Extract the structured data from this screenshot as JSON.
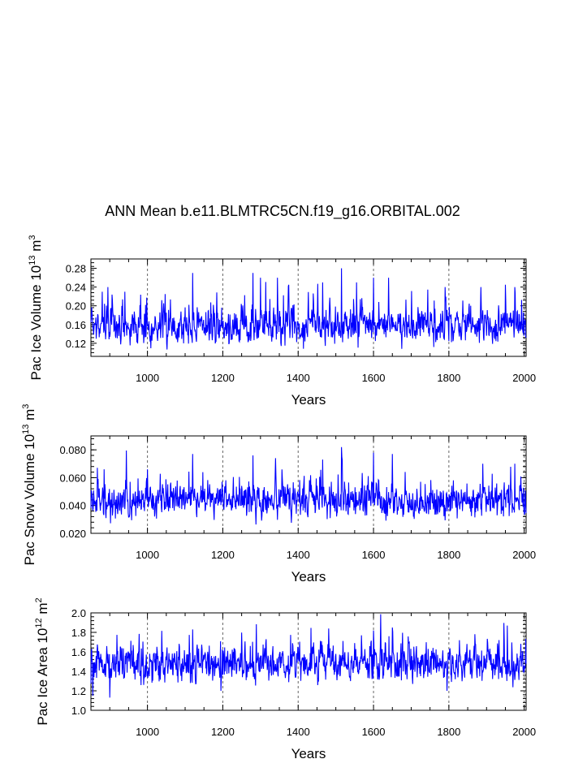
{
  "title": "ANN Mean b.e11.BLMTRC5CN.f19_g16.ORBITAL.002",
  "line_color": "#0000ff",
  "chart_data": [
    {
      "type": "line",
      "ylabel": "Pac Ice Volume 10",
      "ylabel_exp": "13",
      "ylabel_unit": " m",
      "ylabel_unit_exp": "3",
      "xlabel": "Years",
      "xlim": [
        850,
        2005
      ],
      "ylim": [
        0.092,
        0.3
      ],
      "xticks": [
        1000,
        1200,
        1400,
        1600,
        1800,
        2000
      ],
      "xtick_labels": [
        "1000",
        "1200",
        "1400",
        "1600",
        "1800",
        "2000"
      ],
      "yticks": [
        0.12,
        0.16,
        0.2,
        0.24,
        0.28
      ],
      "ytick_labels": [
        "0.12",
        "0.16",
        "0.20",
        "0.24",
        "0.28"
      ],
      "grid_x": [
        1000,
        1200,
        1400,
        1600,
        1800,
        2000
      ],
      "series": {
        "name": "Pac Ice Volume",
        "start_year": 850,
        "base": 0.155,
        "amp": 0.022,
        "seed": 7,
        "spikes": [
          [
            880,
            0.23
          ],
          [
            895,
            0.24
          ],
          [
            940,
            0.23
          ],
          [
            1120,
            0.27
          ],
          [
            1280,
            0.27
          ],
          [
            1300,
            0.26
          ],
          [
            1345,
            0.26
          ],
          [
            1465,
            0.25
          ],
          [
            1515,
            0.28
          ],
          [
            1555,
            0.25
          ],
          [
            1600,
            0.26
          ],
          [
            1640,
            0.26
          ],
          [
            1790,
            0.24
          ],
          [
            1885,
            0.24
          ],
          [
            1950,
            0.245
          ],
          [
            1975,
            0.24
          ]
        ]
      }
    },
    {
      "type": "line",
      "ylabel": "Pac Snow Volume 10",
      "ylabel_exp": "13",
      "ylabel_unit": " m",
      "ylabel_unit_exp": "3",
      "xlabel": "Years",
      "xlim": [
        850,
        2005
      ],
      "ylim": [
        0.02,
        0.09
      ],
      "xticks": [
        1000,
        1200,
        1400,
        1600,
        1800,
        2000
      ],
      "xtick_labels": [
        "1000",
        "1200",
        "1400",
        "1600",
        "1800",
        "2000"
      ],
      "yticks": [
        0.02,
        0.04,
        0.06,
        0.08
      ],
      "ytick_labels": [
        "0.020",
        "0.040",
        "0.060",
        "0.080"
      ],
      "grid_x": [
        1000,
        1200,
        1400,
        1600,
        1800,
        2000
      ],
      "series": {
        "name": "Pac Snow Volume",
        "start_year": 850,
        "base": 0.043,
        "amp": 0.007,
        "seed": 19,
        "spikes": [
          [
            885,
            0.066
          ],
          [
            1000,
            0.066
          ],
          [
            1120,
            0.077
          ],
          [
            1280,
            0.076
          ],
          [
            1340,
            0.074
          ],
          [
            1465,
            0.073
          ],
          [
            1515,
            0.082
          ],
          [
            1600,
            0.078
          ],
          [
            1650,
            0.077
          ],
          [
            1890,
            0.07
          ],
          [
            1975,
            0.07
          ]
        ]
      }
    },
    {
      "type": "line",
      "ylabel": "Pac Ice Area 10",
      "ylabel_exp": "12",
      "ylabel_unit": " m",
      "ylabel_unit_exp": "2",
      "xlabel": "Years",
      "xlim": [
        850,
        2005
      ],
      "ylim": [
        1.0,
        2.0
      ],
      "xticks": [
        1000,
        1200,
        1400,
        1600,
        1800,
        2000
      ],
      "xtick_labels": [
        "1000",
        "1200",
        "1400",
        "1600",
        "1800",
        "2000"
      ],
      "yticks": [
        1.0,
        1.2,
        1.4,
        1.6,
        1.8,
        2.0
      ],
      "ytick_labels": [
        "1.0",
        "1.2",
        "1.4",
        "1.6",
        "1.8",
        "2.0"
      ],
      "grid_x": [
        1000,
        1200,
        1400,
        1600,
        1800,
        2000
      ],
      "series": {
        "name": "Pac Ice Area",
        "start_year": 850,
        "base": 1.47,
        "amp": 0.11,
        "seed": 31,
        "spikes": [
          [
            855,
            1.15
          ],
          [
            1120,
            1.83
          ],
          [
            1195,
            1.2
          ],
          [
            1600,
            1.82
          ],
          [
            1650,
            1.85
          ],
          [
            1795,
            1.2
          ],
          [
            1955,
            1.87
          ],
          [
            900,
            1.13
          ]
        ]
      }
    }
  ]
}
